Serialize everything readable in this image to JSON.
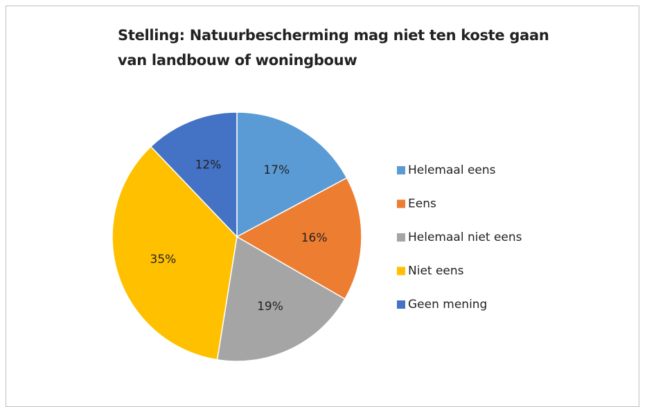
{
  "chart_data": {
    "type": "pie",
    "title": "Stelling: Natuurbescherming mag niet ten koste gaan van landbouw of woningbouw",
    "categories": [
      "Helemaal eens",
      "Eens",
      "Helemaal niet eens",
      "Niet eens",
      "Geen mening"
    ],
    "values": [
      17,
      16,
      19,
      35,
      12
    ],
    "value_labels": [
      "17%",
      "16%",
      "19%",
      "35%",
      "12%"
    ],
    "colors": [
      "#5b9bd5",
      "#ed7d31",
      "#a5a5a5",
      "#ffc000",
      "#4472c4"
    ],
    "legend": "right"
  }
}
